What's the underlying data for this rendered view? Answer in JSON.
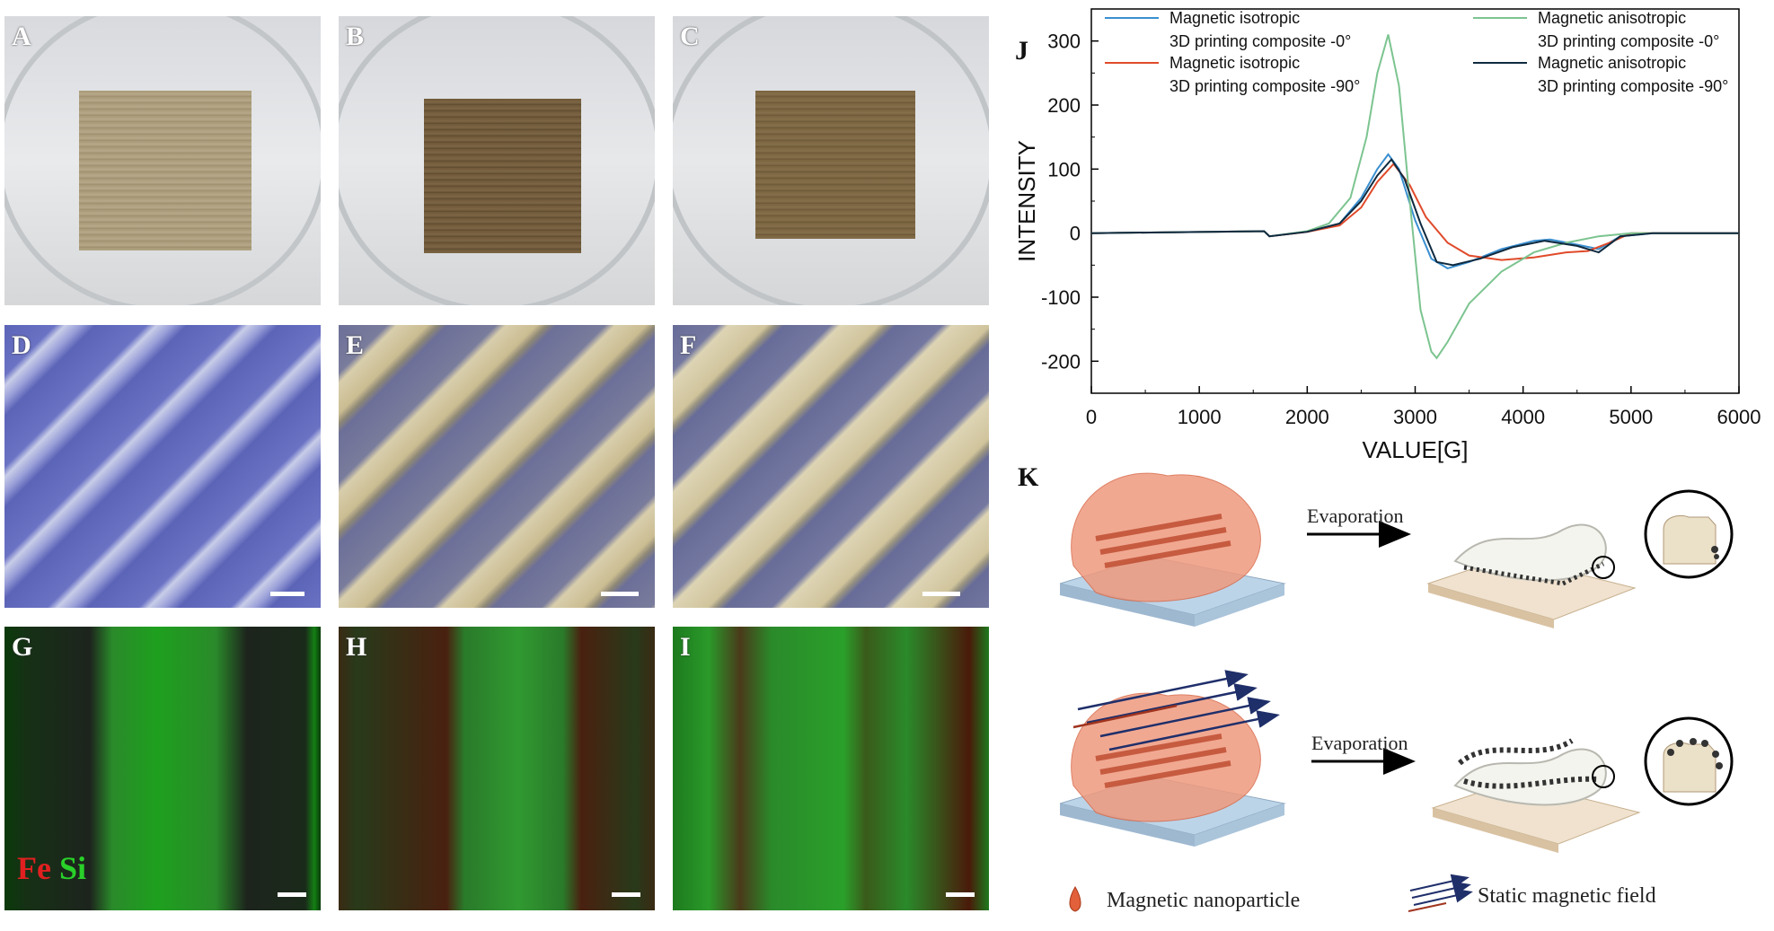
{
  "panels": {
    "A": "A",
    "B": "B",
    "C": "C",
    "D": "D",
    "E": "E",
    "F": "F",
    "G": "G",
    "H": "H",
    "I": "I",
    "J": "J",
    "K": "K"
  },
  "fluorescence_legend": {
    "fe": "Fe",
    "si": "Si"
  },
  "schematic": {
    "evaporation_top": "Evaporation",
    "evaporation_bottom": "Evaporation",
    "legend_nanoparticle": "Magnetic nanoparticle",
    "legend_field": "Static magnetic field"
  },
  "chart_data": {
    "type": "line",
    "xlabel": "VALUE[G]",
    "ylabel": "INTENSITY",
    "xlim": [
      0,
      6000
    ],
    "ylim": [
      -250,
      350
    ],
    "xticks": [
      "0",
      "1000",
      "2000",
      "3000",
      "4000",
      "5000",
      "6000"
    ],
    "yticks": [
      "-200",
      "-100",
      "0",
      "100",
      "200",
      "300"
    ],
    "grid": false,
    "legend_position": "top",
    "series": [
      {
        "name": "Magnetic isotropic 3D printing composite -0°",
        "legend_line1": "Magnetic isotropic",
        "legend_line2": "3D printing composite -0°",
        "color": "#3a8fd0",
        "x": [
          0,
          1600,
          1650,
          2000,
          2300,
          2500,
          2650,
          2750,
          2850,
          3000,
          3150,
          3300,
          3500,
          3800,
          4100,
          4250,
          4500,
          4700,
          4900,
          5200,
          6000
        ],
        "y": [
          0,
          3,
          -5,
          2,
          15,
          55,
          100,
          123,
          100,
          20,
          -40,
          -55,
          -45,
          -25,
          -12,
          -10,
          -18,
          -25,
          -5,
          0,
          0
        ]
      },
      {
        "name": "Magnetic isotropic 3D printing composite -90°",
        "legend_line1": "Magnetic isotropic",
        "legend_line2": "3D printing composite -90°",
        "color": "#e04a2a",
        "x": [
          0,
          1600,
          1650,
          2000,
          2300,
          2500,
          2650,
          2800,
          2950,
          3100,
          3300,
          3500,
          3800,
          4100,
          4400,
          4600,
          4800,
          5000,
          6000
        ],
        "y": [
          0,
          3,
          -5,
          2,
          12,
          40,
          80,
          108,
          75,
          25,
          -15,
          -35,
          -42,
          -38,
          -30,
          -28,
          -15,
          0,
          0
        ]
      },
      {
        "name": "Magnetic anisotropic 3D printing composite -0°",
        "legend_line1": "Magnetic anisotropic",
        "legend_line2": "3D printing composite -0°",
        "color": "#7cc490",
        "x": [
          0,
          1600,
          1650,
          2000,
          2200,
          2400,
          2550,
          2650,
          2750,
          2850,
          2950,
          3050,
          3150,
          3200,
          3300,
          3500,
          3800,
          4100,
          4400,
          4700,
          5000,
          6000
        ],
        "y": [
          0,
          3,
          -5,
          3,
          15,
          55,
          150,
          250,
          310,
          230,
          50,
          -120,
          -185,
          -195,
          -170,
          -110,
          -60,
          -30,
          -15,
          -5,
          0,
          0
        ]
      },
      {
        "name": "Magnetic anisotropic 3D printing composite -90°",
        "legend_line1": "Magnetic anisotropic",
        "legend_line2": "3D printing composite -90°",
        "color": "#0f2a3f",
        "x": [
          0,
          1600,
          1650,
          2000,
          2300,
          2500,
          2650,
          2780,
          2900,
          3050,
          3200,
          3350,
          3600,
          3900,
          4200,
          4500,
          4700,
          4900,
          5200,
          6000
        ],
        "y": [
          0,
          3,
          -5,
          2,
          15,
          50,
          90,
          115,
          85,
          15,
          -45,
          -50,
          -40,
          -22,
          -12,
          -20,
          -30,
          -5,
          0,
          0
        ]
      }
    ]
  }
}
